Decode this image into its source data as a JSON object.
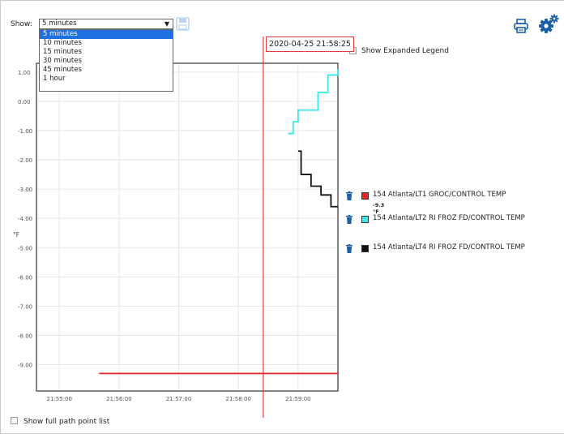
{
  "toolbar": {
    "show_label": "Show:",
    "selected_duration": "5 minutes",
    "duration_options": [
      "5 minutes",
      "10 minutes",
      "15 minutes",
      "30 minutes",
      "45 minutes",
      "1 hour"
    ],
    "save_icon": "save-icon",
    "print_icon": "print-icon",
    "settings_icon": "settings-gear-icon"
  },
  "cursor": {
    "timestamp": "2020-04-25 21:58:25",
    "color": "#e23b3b"
  },
  "expanded_legend": {
    "label": "Show Expanded Legend",
    "checked": false
  },
  "legend": [
    {
      "name": "154 Atlanta/LT1 GROC/CONTROL TEMP",
      "value": "-9.3 °F",
      "color": "#ee2222"
    },
    {
      "name": "154 Atlanta/LT2 RI FROZ FD/CONTROL TEMP",
      "value": "",
      "color": "#38e8ee"
    },
    {
      "name": "154 Atlanta/LT4 RI FROZ FD/CONTROL TEMP",
      "value": "",
      "color": "#111111"
    }
  ],
  "footer": {
    "full_path_label": "Show full path point list",
    "checked": false
  },
  "chart_data": {
    "type": "line",
    "ylabel": "°F",
    "yticks": [
      "1.00",
      "0.00",
      "-1.00",
      "-2.00",
      "-3.00",
      "-4.00",
      "-5.00",
      "-6.00",
      "-7.00",
      "-8.00",
      "-9.00"
    ],
    "ylim": [
      -9.9,
      1.3
    ],
    "xticks": [
      "21:55:00",
      "21:56:00",
      "21:57:00",
      "21:58:00",
      "21:59:00"
    ],
    "xlim": [
      "21:54:37",
      "21:59:40"
    ],
    "cursor_x": "21:58:25",
    "grid": true,
    "series": [
      {
        "name": "154 Atlanta/LT1 GROC/CONTROL TEMP",
        "color": "#ee2222",
        "step": true,
        "x": [
          "21:55:40",
          "21:59:40"
        ],
        "y": [
          -9.3,
          -9.3
        ]
      },
      {
        "name": "154 Atlanta/LT2 RI FROZ FD/CONTROL TEMP",
        "color": "#38e8ee",
        "step": true,
        "x": [
          "21:58:50",
          "21:58:55",
          "21:59:00",
          "21:59:05",
          "21:59:20",
          "21:59:30",
          "21:59:40"
        ],
        "y": [
          -1.1,
          -0.7,
          -0.3,
          -0.3,
          0.3,
          0.9,
          1.1
        ]
      },
      {
        "name": "154 Atlanta/LT4 RI FROZ FD/CONTROL TEMP",
        "color": "#111111",
        "step": true,
        "x": [
          "21:59:00",
          "21:59:03",
          "21:59:13",
          "21:59:23",
          "21:59:33",
          "21:59:40"
        ],
        "y": [
          -1.7,
          -2.5,
          -2.9,
          -3.2,
          -3.6,
          -3.6
        ]
      }
    ]
  }
}
